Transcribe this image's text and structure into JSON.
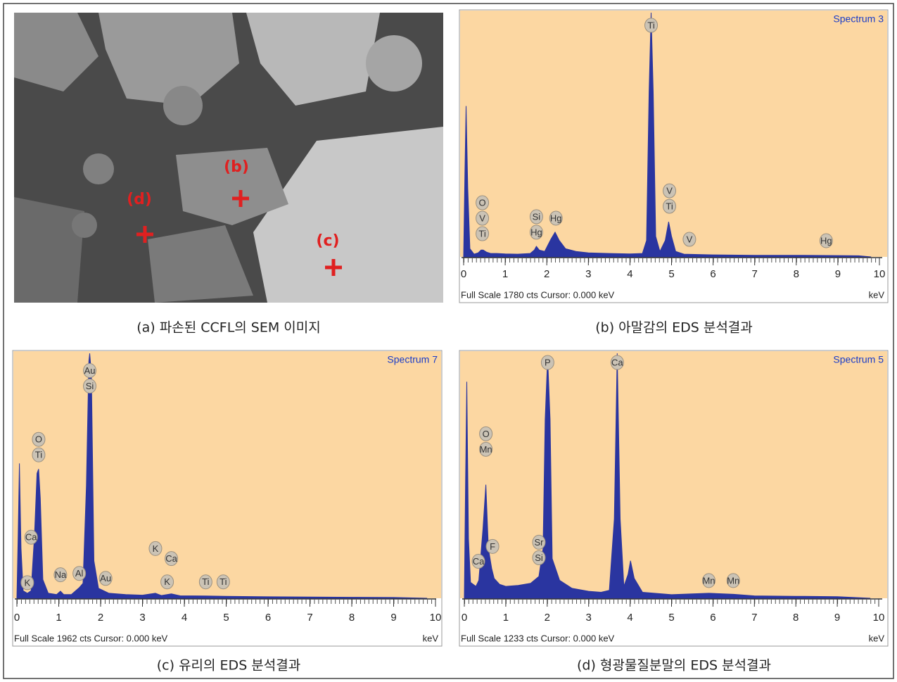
{
  "sem_image": {
    "labels": [
      "(b)",
      "(d)",
      "(c)"
    ]
  },
  "captions": [
    "(a) 파손된 CCFL의 SEM 이미지",
    "(b) 아말감의 EDS 분석결과",
    "(c) 유리의 EDS 분석결과",
    "(d) 형광물질분말의 EDS 분석결과"
  ],
  "chart_data": [
    {
      "type": "area",
      "title": "Spectrum 3",
      "color": "#2a35a0",
      "x": [
        0,
        0.03,
        0.06,
        0.1,
        0.15,
        0.25,
        0.35,
        0.42,
        0.47,
        0.55,
        0.65,
        0.8,
        1.0,
        1.3,
        1.6,
        1.7,
        1.75,
        1.82,
        1.95,
        2.1,
        2.2,
        2.3,
        2.45,
        2.7,
        3.0,
        3.5,
        4.0,
        4.3,
        4.4,
        4.46,
        4.51,
        4.56,
        4.62,
        4.72,
        4.85,
        4.93,
        5.0,
        5.1,
        5.3,
        6,
        7,
        8,
        9,
        9.5,
        9.8
      ],
      "values": [
        0,
        600,
        1100,
        500,
        60,
        20,
        30,
        50,
        50,
        35,
        25,
        25,
        22,
        20,
        25,
        50,
        77,
        50,
        40,
        130,
        180,
        120,
        60,
        40,
        30,
        25,
        22,
        25,
        120,
        1200,
        1780,
        1200,
        150,
        40,
        120,
        256,
        150,
        40,
        20,
        15,
        12,
        12,
        10,
        8,
        0
      ],
      "xlim": [
        0,
        10
      ],
      "ylim": [
        0,
        1780
      ],
      "xticks": [
        0,
        1,
        2,
        3,
        4,
        5,
        6,
        7,
        8,
        9,
        10
      ],
      "xlabel": "keV",
      "footer": "Full Scale 1780 cts  Cursor: 0.000 keV",
      "annotations": [
        {
          "x": 0.45,
          "y": 169,
          "labels": [
            "O",
            "V",
            "Ti"
          ]
        },
        {
          "x": 1.75,
          "y": 180,
          "labels": [
            "Si",
            "Hg"
          ]
        },
        {
          "x": 2.22,
          "y": 282,
          "labels": [
            "Hg"
          ]
        },
        {
          "x": 4.51,
          "y": 1688,
          "labels": [
            "Ti"
          ]
        },
        {
          "x": 4.95,
          "y": 369,
          "labels": [
            "V",
            "Ti"
          ]
        },
        {
          "x": 5.43,
          "y": 128,
          "labels": [
            "V"
          ]
        },
        {
          "x": 8.72,
          "y": 118,
          "labels": [
            "Hg"
          ]
        }
      ]
    },
    {
      "type": "area",
      "title": "Spectrum 7",
      "color": "#2a35a0",
      "x": [
        0,
        0.03,
        0.06,
        0.1,
        0.15,
        0.25,
        0.34,
        0.42,
        0.48,
        0.52,
        0.56,
        0.62,
        0.75,
        0.95,
        1.04,
        1.12,
        1.3,
        1.49,
        1.58,
        1.66,
        1.72,
        1.74,
        1.78,
        1.84,
        1.95,
        2.2,
        2.6,
        3.0,
        3.31,
        3.45,
        3.69,
        3.9,
        4.5,
        5,
        6,
        7,
        8,
        9,
        9.8
      ],
      "values": [
        0,
        500,
        1080,
        400,
        60,
        40,
        60,
        500,
        1000,
        1035,
        800,
        150,
        40,
        30,
        57,
        30,
        30,
        85,
        120,
        900,
        1900,
        1962,
        1800,
        300,
        80,
        40,
        30,
        25,
        40,
        22,
        35,
        20,
        18,
        15,
        12,
        10,
        8,
        6,
        0
      ],
      "xlim": [
        0,
        10
      ],
      "ylim": [
        0,
        1962
      ],
      "xticks": [
        0,
        1,
        2,
        3,
        4,
        5,
        6,
        7,
        8,
        9,
        10
      ],
      "xlabel": "keV",
      "footer": "Full Scale 1962 cts  Cursor: 0.000 keV",
      "annotations": [
        {
          "x": 1.74,
          "y": 1700,
          "labels": [
            "Au",
            "Si"
          ]
        },
        {
          "x": 0.52,
          "y": 1149,
          "labels": [
            "O",
            "Ti"
          ]
        },
        {
          "x": 0.34,
          "y": 489,
          "labels": [
            "Ca"
          ]
        },
        {
          "x": 0.25,
          "y": 125,
          "labels": [
            "K"
          ]
        },
        {
          "x": 1.04,
          "y": 188,
          "labels": [
            "Na"
          ]
        },
        {
          "x": 1.49,
          "y": 199,
          "labels": [
            "Al"
          ]
        },
        {
          "x": 2.12,
          "y": 159,
          "labels": [
            "Au"
          ]
        },
        {
          "x": 3.31,
          "y": 398,
          "labels": [
            "K"
          ]
        },
        {
          "x": 3.69,
          "y": 318,
          "labels": [
            "Ca"
          ]
        },
        {
          "x": 3.59,
          "y": 131,
          "labels": [
            "K"
          ]
        },
        {
          "x": 4.51,
          "y": 131,
          "labels": [
            "Ti"
          ]
        },
        {
          "x": 4.93,
          "y": 131,
          "labels": [
            "Ti"
          ]
        }
      ]
    },
    {
      "type": "area",
      "title": "Spectrum 5",
      "color": "#2a35a0",
      "x": [
        0,
        0.03,
        0.06,
        0.1,
        0.15,
        0.28,
        0.35,
        0.45,
        0.52,
        0.58,
        0.66,
        0.72,
        0.85,
        1.0,
        1.3,
        1.6,
        1.8,
        1.9,
        1.95,
        2.01,
        2.07,
        2.12,
        2.3,
        2.6,
        3.0,
        3.3,
        3.5,
        3.62,
        3.69,
        3.76,
        3.85,
        3.95,
        4.01,
        4.1,
        4.3,
        5,
        5.9,
        6.5,
        7,
        8,
        9,
        9.8
      ],
      "values": [
        0,
        600,
        1090,
        300,
        80,
        60,
        90,
        350,
        572,
        250,
        150,
        100,
        70,
        60,
        65,
        75,
        110,
        250,
        900,
        1215,
        900,
        200,
        90,
        50,
        35,
        30,
        40,
        400,
        1233,
        400,
        60,
        120,
        189,
        100,
        30,
        18,
        25,
        20,
        12,
        10,
        8,
        0
      ],
      "xlim": [
        0,
        10
      ],
      "ylim": [
        0,
        1233
      ],
      "xticks": [
        0,
        1,
        2,
        3,
        4,
        5,
        6,
        7,
        8,
        9,
        10
      ],
      "xlabel": "keV",
      "footer": "Full Scale 1233 cts  Cursor: 0.000 keV",
      "annotations": [
        {
          "x": 0.52,
          "y": 750,
          "labels": [
            "O",
            "Mn"
          ]
        },
        {
          "x": 0.34,
          "y": 186,
          "labels": [
            "Ca"
          ]
        },
        {
          "x": 0.68,
          "y": 261,
          "labels": [
            "F"
          ]
        },
        {
          "x": 1.8,
          "y": 204,
          "labels": [
            "Sr",
            "Si"
          ]
        },
        {
          "x": 2.01,
          "y": 1187,
          "labels": [
            "P"
          ]
        },
        {
          "x": 3.69,
          "y": 1187,
          "labels": [
            "Ca"
          ]
        },
        {
          "x": 5.9,
          "y": 89,
          "labels": [
            "Mn"
          ]
        },
        {
          "x": 6.49,
          "y": 89,
          "labels": [
            "Mn"
          ]
        }
      ]
    }
  ]
}
